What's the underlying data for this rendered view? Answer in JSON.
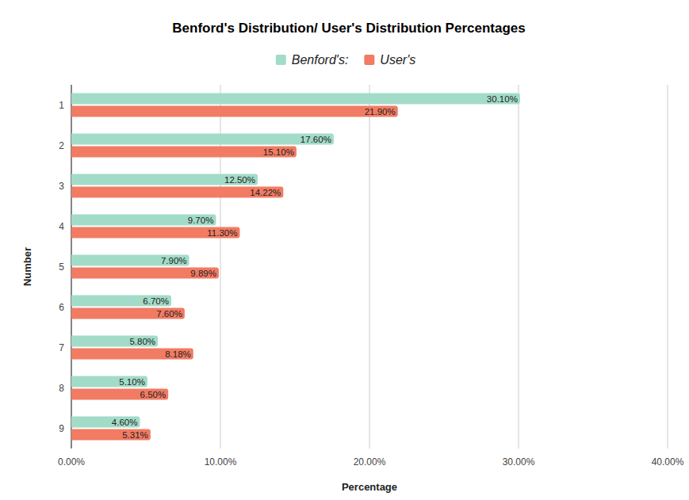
{
  "chart_data": {
    "type": "bar",
    "orientation": "horizontal",
    "title": "Benford's Distribution/ User's Distribution Percentages",
    "x_label": "Percentage",
    "y_label": "Number",
    "categories": [
      "1",
      "2",
      "3",
      "4",
      "5",
      "6",
      "7",
      "8",
      "9"
    ],
    "series": [
      {
        "name": "Benford's:",
        "color": "#a2dcc8",
        "values": [
          30.1,
          17.6,
          12.5,
          9.7,
          7.9,
          6.7,
          5.8,
          5.1,
          4.6
        ],
        "value_labels": [
          "30.10%",
          "17.60%",
          "12.50%",
          "9.70%",
          "7.90%",
          "6.70%",
          "5.80%",
          "5.10%",
          "4.60%"
        ]
      },
      {
        "name": "User's",
        "color": "#f27b63",
        "values": [
          21.9,
          15.1,
          14.22,
          11.3,
          9.89,
          7.6,
          8.18,
          6.5,
          5.31
        ],
        "value_labels": [
          "21.90%",
          "15.10%",
          "14.22%",
          "11.30%",
          "9.89%",
          "7.60%",
          "8.18%",
          "6.50%",
          "5.31%"
        ]
      }
    ],
    "xlim": [
      0,
      40
    ],
    "xticks": [
      {
        "value": 0,
        "label": "0.00%"
      },
      {
        "value": 10,
        "label": "10.00%"
      },
      {
        "value": 20,
        "label": "20.00%"
      },
      {
        "value": 30,
        "label": "30.00%"
      },
      {
        "value": 40,
        "label": "40.00%"
      }
    ],
    "grid": true,
    "legend": "top",
    "data_labels": true
  }
}
